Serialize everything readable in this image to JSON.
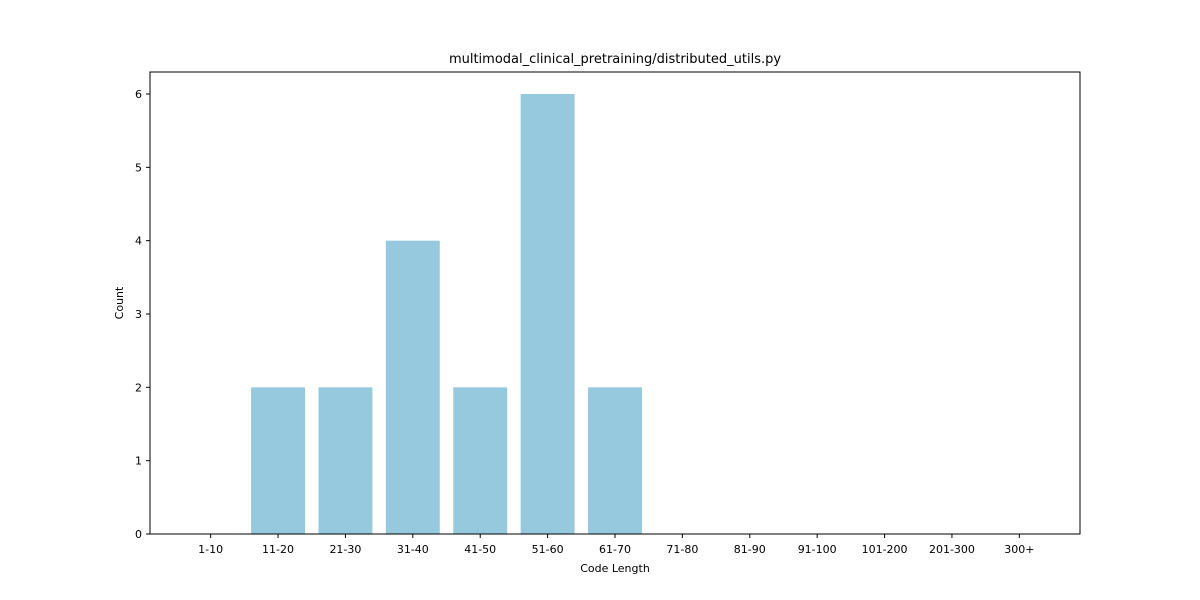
{
  "chart_data": {
    "type": "bar",
    "title": "multimodal_clinical_pretraining/distributed_utils.py",
    "xlabel": "Code Length",
    "ylabel": "Count",
    "categories": [
      "1-10",
      "11-20",
      "21-30",
      "31-40",
      "41-50",
      "51-60",
      "61-70",
      "71-80",
      "81-90",
      "91-100",
      "101-200",
      "201-300",
      "300+"
    ],
    "values": [
      0,
      2,
      2,
      4,
      2,
      6,
      2,
      0,
      0,
      0,
      0,
      0,
      0
    ],
    "ylim": [
      0,
      6.3
    ],
    "yticks": [
      0,
      1,
      2,
      3,
      4,
      5,
      6
    ],
    "bar_color": "#96c9de",
    "grid": false,
    "legend": "none"
  }
}
